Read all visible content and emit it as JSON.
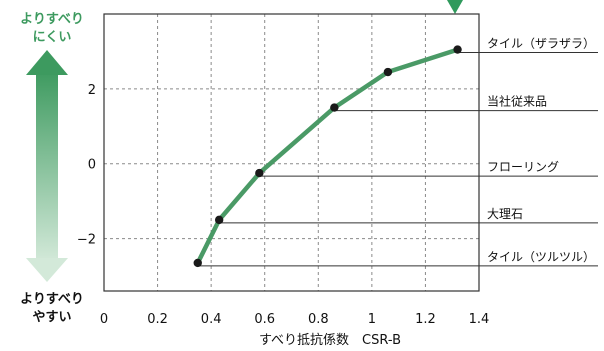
{
  "chart_data": {
    "type": "line",
    "xlabel": "すべり抵抗係数　CSR-B",
    "ylabel": "",
    "xlim": [
      0,
      1.4
    ],
    "ylim": [
      -3.4,
      4
    ],
    "x_ticks": [
      "0",
      "0.2",
      "0.4",
      "0.6",
      "0.8",
      "1",
      "1.2",
      "1.4"
    ],
    "x_tick_values": [
      0,
      0.2,
      0.4,
      0.6,
      0.8,
      1.0,
      1.2,
      1.4
    ],
    "y_ticks": [
      "2",
      "0",
      "−2"
    ],
    "y_tick_values": [
      2,
      0,
      -2
    ],
    "grid": true,
    "series": [
      {
        "x": [
          0.35,
          0.43,
          0.58,
          0.86,
          1.06,
          1.32
        ],
        "y": [
          -2.65,
          -1.5,
          -0.25,
          1.5,
          2.45,
          3.05
        ],
        "color": "#4a9a66"
      }
    ],
    "annotations": [
      {
        "text": "タイル（ザラザラ）",
        "point_index": 5
      },
      {
        "text": "当社従来品",
        "point_index": 3
      },
      {
        "text": "フローリング",
        "point_index": 2
      },
      {
        "text": "大理石",
        "point_index": 1
      },
      {
        "text": "タイル（ツルツル）",
        "point_index": 0
      }
    ],
    "axis_notes": {
      "top": [
        "よりすべり",
        "にくい"
      ],
      "bottom": [
        "よりすべり",
        "やすい"
      ]
    },
    "colors": {
      "accent": "#3d9a5f",
      "arrow_top": "#3d9a5f",
      "arrow_bottom": "#c8e2cf"
    }
  }
}
